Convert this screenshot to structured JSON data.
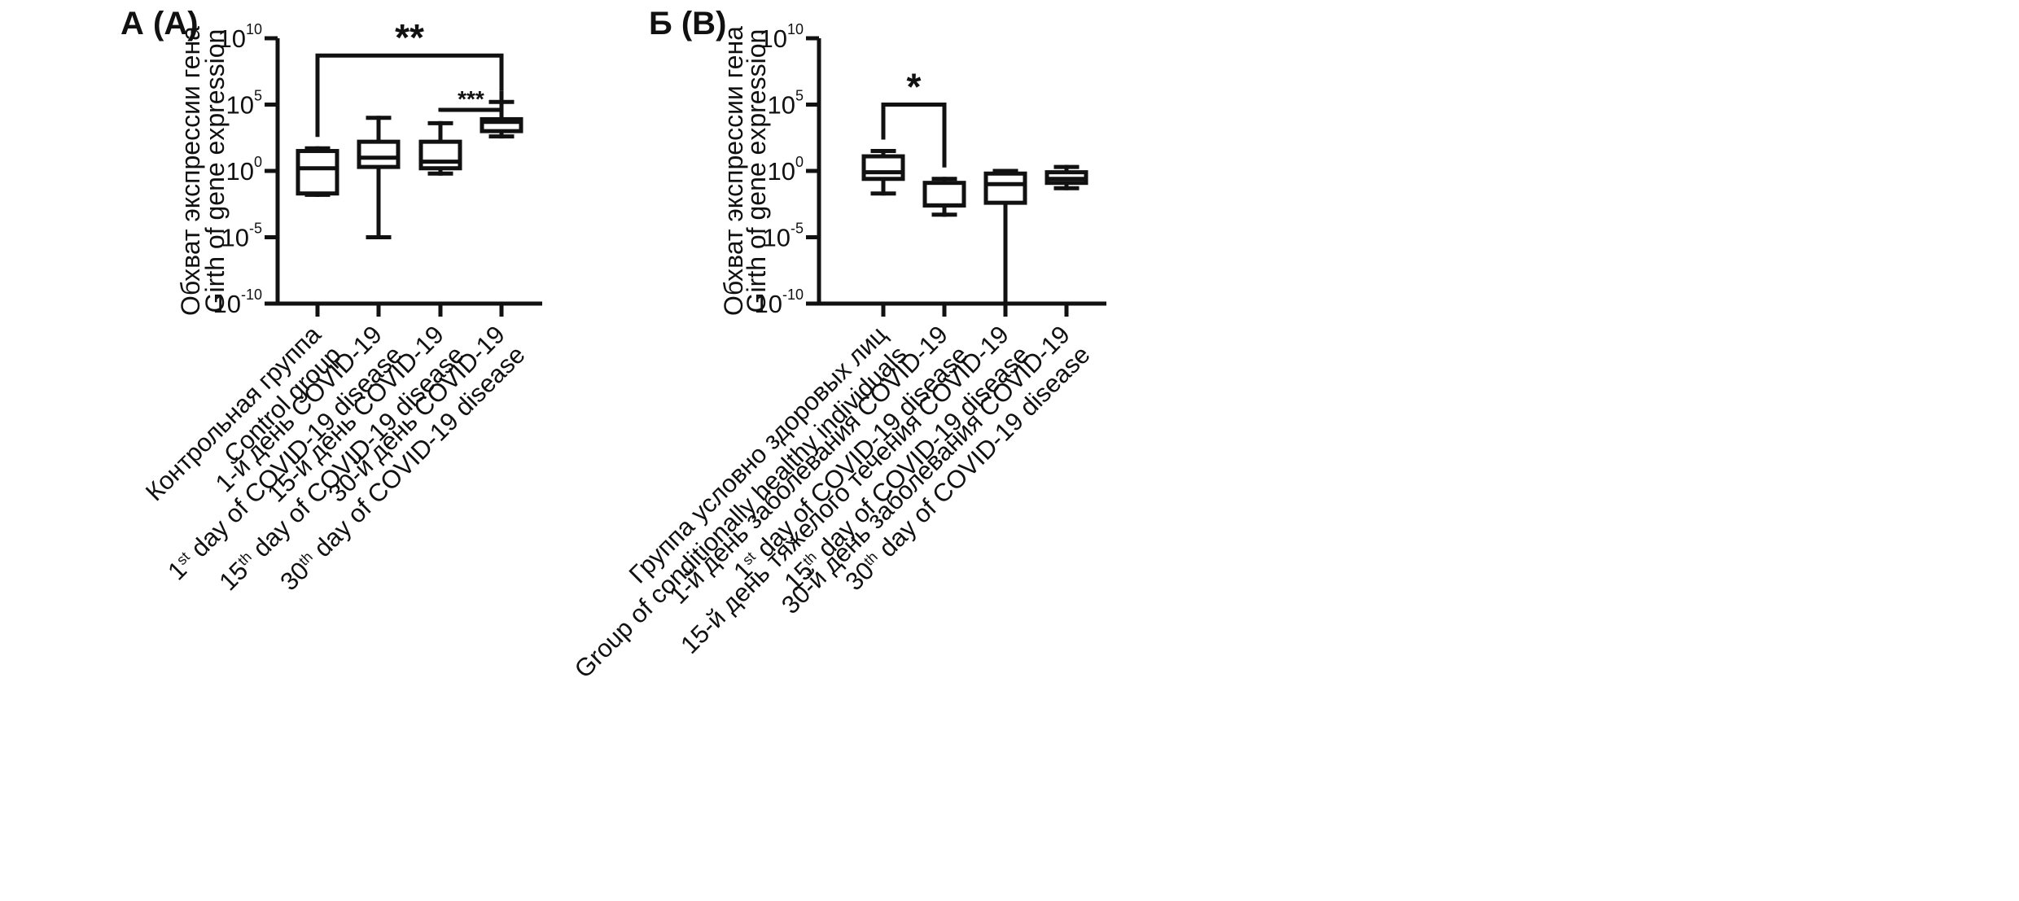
{
  "chart_data": [
    {
      "type": "box",
      "panel_label": "А (A)",
      "ylabel": [
        "Обхват экспрессии гена",
        "Girth of gene expression"
      ],
      "yscale": "log",
      "ylim": [
        -10,
        10
      ],
      "yticks": [
        {
          "base": "10",
          "exp": "10",
          "value": 10
        },
        {
          "base": "10",
          "exp": "5",
          "value": 5
        },
        {
          "base": "10",
          "exp": "0",
          "value": 0
        },
        {
          "base": "10",
          "exp": "-5",
          "value": -5
        },
        {
          "base": "10",
          "exp": "-10",
          "value": -10
        }
      ],
      "categories": [
        {
          "lines": [
            [
              {
                "t": "Контрольная группа"
              }
            ],
            [
              {
                "t": "Control group"
              }
            ]
          ]
        },
        {
          "lines": [
            [
              {
                "t": "1-й день COVID-19"
              }
            ],
            [
              {
                "t": "1"
              },
              {
                "t": "st",
                "sup": true
              },
              {
                "t": " day of COVID-19 disease"
              }
            ]
          ]
        },
        {
          "lines": [
            [
              {
                "t": "15-й день COVID-19"
              }
            ],
            [
              {
                "t": "15"
              },
              {
                "t": "th",
                "sup": true
              },
              {
                "t": " day of COVID-19 disease"
              }
            ]
          ]
        },
        {
          "lines": [
            [
              {
                "t": "30-й день COVID-19"
              }
            ],
            [
              {
                "t": "30"
              },
              {
                "t": "th",
                "sup": true
              },
              {
                "t": " day of COVID-19 disease"
              }
            ]
          ]
        }
      ],
      "boxes_log10": [
        {
          "min": -1.8,
          "q1": -1.7,
          "median": 0.2,
          "q3": 1.5,
          "max": 1.7
        },
        {
          "min": -5.0,
          "q1": 0.3,
          "median": 1.0,
          "q3": 2.2,
          "max": 4.0
        },
        {
          "min": -0.2,
          "q1": 0.2,
          "median": 0.7,
          "q3": 2.2,
          "max": 3.6
        },
        {
          "min": 2.6,
          "q1": 3.0,
          "median": 3.7,
          "q3": 3.9,
          "max": 5.2
        }
      ],
      "significance": [
        {
          "from": 0,
          "to": 3,
          "label": "**",
          "y_log10": 8.7
        },
        {
          "from": 2,
          "to": 3,
          "label": "***",
          "y_log10": 4.6
        }
      ]
    },
    {
      "type": "box",
      "panel_label": "Б (B)",
      "ylabel": [
        "Обхват экспрессии гена",
        "Girth of gene expression"
      ],
      "yscale": "log",
      "ylim": [
        -10,
        10
      ],
      "yticks": [
        {
          "base": "10",
          "exp": "10",
          "value": 10
        },
        {
          "base": "10",
          "exp": "5",
          "value": 5
        },
        {
          "base": "10",
          "exp": "0",
          "value": 0
        },
        {
          "base": "10",
          "exp": "-5",
          "value": -5
        },
        {
          "base": "10",
          "exp": "-10",
          "value": -10
        }
      ],
      "categories": [
        {
          "lines": [
            [
              {
                "t": "Группа условно здоровых лиц"
              }
            ],
            [
              {
                "t": "Group of conditionally healthy individuals"
              }
            ]
          ]
        },
        {
          "lines": [
            [
              {
                "t": "1-й день заболевания COVID-19"
              }
            ],
            [
              {
                "t": "1"
              },
              {
                "t": "st",
                "sup": true
              },
              {
                "t": " day of COVID-19 disease"
              }
            ]
          ]
        },
        {
          "lines": [
            [
              {
                "t": "15-й день тяжелого течения COVID-19"
              }
            ],
            [
              {
                "t": "15"
              },
              {
                "t": "th",
                "sup": true
              },
              {
                "t": " day of COVID-19 disease"
              }
            ]
          ]
        },
        {
          "lines": [
            [
              {
                "t": "30-й день заболевания COVID-19"
              }
            ],
            [
              {
                "t": "30"
              },
              {
                "t": "th",
                "sup": true
              },
              {
                "t": " day of COVID-19 disease"
              }
            ]
          ]
        }
      ],
      "boxes_log10": [
        {
          "min": -1.7,
          "q1": -0.6,
          "median": -0.1,
          "q3": 1.1,
          "max": 1.5
        },
        {
          "min": -3.3,
          "q1": -2.6,
          "median": -2.6,
          "q3": -0.9,
          "max": -0.6
        },
        {
          "min": -10.0,
          "q1": -2.4,
          "median": -1.0,
          "q3": -0.2,
          "max": 0.0
        },
        {
          "min": -1.3,
          "q1": -0.9,
          "median": -0.6,
          "q3": -0.1,
          "max": 0.3
        }
      ],
      "significance": [
        {
          "from": 0,
          "to": 1,
          "label": "*",
          "y_log10": 5.0
        }
      ]
    }
  ]
}
